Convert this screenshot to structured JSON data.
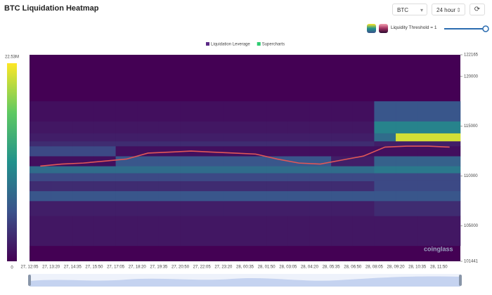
{
  "header": {
    "title": "BTC Liquidation Heatmap"
  },
  "controls": {
    "symbol": "BTC",
    "range": "24 hour",
    "threshold": "Liquidity Threshold = 1"
  },
  "watermark": "coinglass",
  "chart_data": {
    "type": "heatmap",
    "legend": [
      {
        "name": "Liquidation Leverage",
        "color": "#5b2a86"
      },
      {
        "name": "Supercharts",
        "color": "#2ecc71"
      }
    ],
    "x": [
      "27, 12:05",
      "27, 13:20",
      "27, 14:35",
      "27, 15:50",
      "27, 17:05",
      "27, 18:20",
      "27, 19:35",
      "27, 20:50",
      "27, 22:05",
      "27, 23:20",
      "28, 00:35",
      "28, 01:50",
      "28, 03:05",
      "28, 04:20",
      "28, 05:35",
      "28, 06:50",
      "28, 08:05",
      "28, 09:20",
      "28, 10:35",
      "28, 11:50"
    ],
    "ylim": [
      101441,
      122165
    ],
    "yticks": [
      122165,
      120000,
      115000,
      110000,
      105000,
      101441
    ],
    "ybins": [
      103000,
      106000,
      107500,
      108500,
      109500,
      110300,
      111000,
      112000,
      113000,
      113500,
      114300,
      115500,
      117500
    ],
    "z": [
      [
        1500000,
        1500000,
        1500000,
        1500000,
        1500000,
        1500000,
        1500000,
        1500000,
        1500000,
        1500000,
        1500000,
        1500000,
        1500000,
        1500000,
        1500000,
        1500000,
        1500000,
        1500000,
        1500000,
        1500000
      ],
      [
        2000000,
        2000000,
        2000000,
        2000000,
        2000000,
        2000000,
        2000000,
        2000000,
        2000000,
        2000000,
        2000000,
        2000000,
        2000000,
        2000000,
        2000000,
        2000000,
        3000000,
        3000000,
        3000000,
        3000000
      ],
      [
        6000000,
        6000000,
        6000000,
        6000000,
        6000000,
        6000000,
        6000000,
        6000000,
        6000000,
        6000000,
        6000000,
        6000000,
        6000000,
        6000000,
        6000000,
        6000000,
        6000000,
        6000000,
        6000000,
        6000000
      ],
      [
        3000000,
        3000000,
        3000000,
        3000000,
        3000000,
        3000000,
        3000000,
        3000000,
        3000000,
        3000000,
        3000000,
        3000000,
        3000000,
        3000000,
        3000000,
        3000000,
        5000000,
        5000000,
        5000000,
        5000000
      ],
      [
        5000000,
        5000000,
        5000000,
        5000000,
        5000000,
        5000000,
        5000000,
        5000000,
        5000000,
        5000000,
        5000000,
        5000000,
        5000000,
        5000000,
        5000000,
        5000000,
        5000000,
        5000000,
        5000000,
        5000000
      ],
      [
        8000000,
        8000000,
        8000000,
        8000000,
        8000000,
        8000000,
        8000000,
        8000000,
        8000000,
        8000000,
        8000000,
        8000000,
        8000000,
        8000000,
        8000000,
        8000000,
        9000000,
        9000000,
        9000000,
        9000000
      ],
      [
        1000000,
        1000000,
        1000000,
        1000000,
        6000000,
        6000000,
        6000000,
        6000000,
        6000000,
        6000000,
        6000000,
        6000000,
        6000000,
        6000000,
        2000000,
        2000000,
        7000000,
        7000000,
        7000000,
        7000000
      ],
      [
        5000000,
        5000000,
        5000000,
        5000000,
        1000000,
        1000000,
        1000000,
        1000000,
        1000000,
        1000000,
        1000000,
        1000000,
        1000000,
        1000000,
        1000000,
        1000000,
        1000000,
        1000000,
        1000000,
        1000000
      ],
      [
        3000000,
        3000000,
        3000000,
        3000000,
        3000000,
        3000000,
        3000000,
        3000000,
        3000000,
        3000000,
        3000000,
        3000000,
        3000000,
        3000000,
        3000000,
        3000000,
        2000000,
        2000000,
        2000000,
        2000000
      ],
      [
        2000000,
        2000000,
        2000000,
        2000000,
        2000000,
        2000000,
        2000000,
        2000000,
        2000000,
        2000000,
        2000000,
        2000000,
        2000000,
        2000000,
        2000000,
        2000000,
        8000000,
        21000000,
        21000000,
        21000000
      ],
      [
        1500000,
        1500000,
        1500000,
        1500000,
        1500000,
        1500000,
        1500000,
        1500000,
        1500000,
        1500000,
        1500000,
        1500000,
        1500000,
        1500000,
        1500000,
        1500000,
        10000000,
        10000000,
        10000000,
        10000000
      ],
      [
        1000000,
        1000000,
        1000000,
        1000000,
        1000000,
        1000000,
        1000000,
        1000000,
        1000000,
        1000000,
        1000000,
        1000000,
        1000000,
        1000000,
        1000000,
        1000000,
        6000000,
        6000000,
        6000000,
        6000000
      ]
    ],
    "price": [
      111000,
      111200,
      111300,
      111500,
      111700,
      112300,
      112400,
      112500,
      112400,
      112300,
      112200,
      111700,
      111300,
      111200,
      111600,
      112000,
      112900,
      113000,
      113000,
      112900
    ],
    "line_color": "#e05757",
    "colormap": [
      "#440154",
      "#3b528b",
      "#21918c",
      "#5ec962",
      "#fde725"
    ],
    "colorbar": {
      "min": 0,
      "max": 22530000,
      "max_label": "22.53M"
    }
  }
}
